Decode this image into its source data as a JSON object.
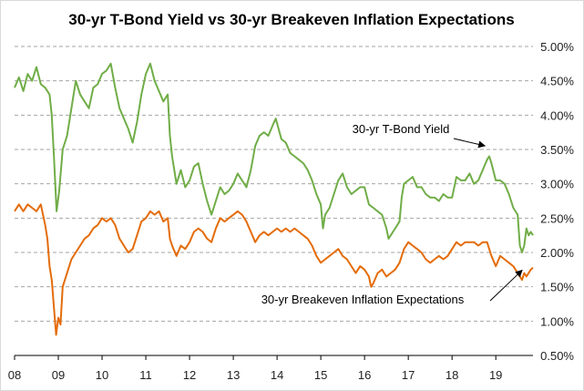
{
  "chart_data": {
    "type": "line",
    "title": "30-yr T-Bond Yield vs 30-yr Breakeven Inflation Expectations",
    "xlabel": "",
    "ylabel": "",
    "xlim": [
      2008,
      2019.85
    ],
    "ylim": [
      0.5,
      5.0
    ],
    "x_ticks": [
      {
        "x": 2008,
        "label": "08"
      },
      {
        "x": 2009,
        "label": "09"
      },
      {
        "x": 2010,
        "label": "10"
      },
      {
        "x": 2011,
        "label": "11"
      },
      {
        "x": 2012,
        "label": "12"
      },
      {
        "x": 2013,
        "label": "13"
      },
      {
        "x": 2014,
        "label": "14"
      },
      {
        "x": 2015,
        "label": "15"
      },
      {
        "x": 2016,
        "label": "16"
      },
      {
        "x": 2017,
        "label": "17"
      },
      {
        "x": 2018,
        "label": "18"
      },
      {
        "x": 2019,
        "label": "19"
      }
    ],
    "y_ticks": [
      {
        "y": 5.0,
        "label": "5.00%"
      },
      {
        "y": 4.5,
        "label": "4.50%"
      },
      {
        "y": 4.0,
        "label": "4.00%"
      },
      {
        "y": 3.5,
        "label": "3.50%"
      },
      {
        "y": 3.0,
        "label": "3.00%"
      },
      {
        "y": 2.5,
        "label": "2.50%"
      },
      {
        "y": 2.0,
        "label": "2.00%"
      },
      {
        "y": 1.5,
        "label": "1.50%"
      },
      {
        "y": 1.0,
        "label": "1.00%"
      },
      {
        "y": 0.5,
        "label": "0.50%"
      }
    ],
    "grid": true,
    "y_axis_side": "right",
    "legend": "none",
    "series": [
      {
        "name": "30-yr T-Bond Yield",
        "color": "#70ad47",
        "points": [
          [
            2008.0,
            4.4
          ],
          [
            2008.1,
            4.55
          ],
          [
            2008.2,
            4.35
          ],
          [
            2008.3,
            4.6
          ],
          [
            2008.4,
            4.5
          ],
          [
            2008.5,
            4.7
          ],
          [
            2008.6,
            4.45
          ],
          [
            2008.7,
            4.4
          ],
          [
            2008.8,
            4.3
          ],
          [
            2008.85,
            4.0
          ],
          [
            2008.9,
            3.4
          ],
          [
            2008.96,
            2.6
          ],
          [
            2009.02,
            2.9
          ],
          [
            2009.1,
            3.5
          ],
          [
            2009.2,
            3.7
          ],
          [
            2009.3,
            4.1
          ],
          [
            2009.4,
            4.5
          ],
          [
            2009.5,
            4.3
          ],
          [
            2009.6,
            4.2
          ],
          [
            2009.7,
            4.1
          ],
          [
            2009.8,
            4.4
          ],
          [
            2009.9,
            4.45
          ],
          [
            2010.0,
            4.6
          ],
          [
            2010.1,
            4.65
          ],
          [
            2010.2,
            4.75
          ],
          [
            2010.3,
            4.4
          ],
          [
            2010.4,
            4.1
          ],
          [
            2010.5,
            3.95
          ],
          [
            2010.6,
            3.8
          ],
          [
            2010.7,
            3.6
          ],
          [
            2010.8,
            3.9
          ],
          [
            2010.9,
            4.3
          ],
          [
            2011.0,
            4.6
          ],
          [
            2011.1,
            4.75
          ],
          [
            2011.2,
            4.5
          ],
          [
            2011.3,
            4.35
          ],
          [
            2011.4,
            4.2
          ],
          [
            2011.5,
            4.3
          ],
          [
            2011.55,
            3.7
          ],
          [
            2011.6,
            3.4
          ],
          [
            2011.7,
            3.0
          ],
          [
            2011.8,
            3.2
          ],
          [
            2011.9,
            2.95
          ],
          [
            2012.0,
            3.05
          ],
          [
            2012.1,
            3.25
          ],
          [
            2012.2,
            3.3
          ],
          [
            2012.3,
            3.0
          ],
          [
            2012.4,
            2.75
          ],
          [
            2012.5,
            2.55
          ],
          [
            2012.6,
            2.75
          ],
          [
            2012.7,
            2.95
          ],
          [
            2012.8,
            2.85
          ],
          [
            2012.9,
            2.9
          ],
          [
            2013.0,
            3.0
          ],
          [
            2013.1,
            3.15
          ],
          [
            2013.2,
            3.05
          ],
          [
            2013.3,
            2.95
          ],
          [
            2013.4,
            3.2
          ],
          [
            2013.5,
            3.55
          ],
          [
            2013.6,
            3.7
          ],
          [
            2013.7,
            3.75
          ],
          [
            2013.8,
            3.7
          ],
          [
            2013.9,
            3.85
          ],
          [
            2013.97,
            3.95
          ],
          [
            2014.1,
            3.65
          ],
          [
            2014.2,
            3.6
          ],
          [
            2014.3,
            3.45
          ],
          [
            2014.4,
            3.4
          ],
          [
            2014.5,
            3.35
          ],
          [
            2014.6,
            3.3
          ],
          [
            2014.7,
            3.2
          ],
          [
            2014.8,
            3.05
          ],
          [
            2014.9,
            2.85
          ],
          [
            2015.0,
            2.7
          ],
          [
            2015.05,
            2.35
          ],
          [
            2015.1,
            2.55
          ],
          [
            2015.2,
            2.65
          ],
          [
            2015.3,
            2.85
          ],
          [
            2015.4,
            3.05
          ],
          [
            2015.5,
            3.15
          ],
          [
            2015.6,
            2.95
          ],
          [
            2015.7,
            2.85
          ],
          [
            2015.8,
            2.9
          ],
          [
            2015.9,
            2.95
          ],
          [
            2016.0,
            2.95
          ],
          [
            2016.1,
            2.7
          ],
          [
            2016.2,
            2.65
          ],
          [
            2016.3,
            2.6
          ],
          [
            2016.4,
            2.55
          ],
          [
            2016.5,
            2.35
          ],
          [
            2016.55,
            2.2
          ],
          [
            2016.6,
            2.25
          ],
          [
            2016.7,
            2.35
          ],
          [
            2016.8,
            2.45
          ],
          [
            2016.85,
            2.8
          ],
          [
            2016.9,
            3.0
          ],
          [
            2017.0,
            3.05
          ],
          [
            2017.1,
            3.1
          ],
          [
            2017.2,
            2.95
          ],
          [
            2017.3,
            2.95
          ],
          [
            2017.4,
            2.85
          ],
          [
            2017.5,
            2.8
          ],
          [
            2017.6,
            2.8
          ],
          [
            2017.7,
            2.75
          ],
          [
            2017.8,
            2.85
          ],
          [
            2017.9,
            2.8
          ],
          [
            2018.0,
            2.8
          ],
          [
            2018.1,
            3.1
          ],
          [
            2018.2,
            3.05
          ],
          [
            2018.3,
            3.05
          ],
          [
            2018.4,
            3.15
          ],
          [
            2018.5,
            3.0
          ],
          [
            2018.6,
            3.05
          ],
          [
            2018.7,
            3.2
          ],
          [
            2018.8,
            3.35
          ],
          [
            2018.85,
            3.4
          ],
          [
            2018.9,
            3.3
          ],
          [
            2019.0,
            3.05
          ],
          [
            2019.1,
            3.05
          ],
          [
            2019.2,
            3.0
          ],
          [
            2019.3,
            2.85
          ],
          [
            2019.4,
            2.65
          ],
          [
            2019.5,
            2.55
          ],
          [
            2019.55,
            2.1
          ],
          [
            2019.6,
            2.0
          ],
          [
            2019.65,
            2.1
          ],
          [
            2019.7,
            2.35
          ],
          [
            2019.75,
            2.25
          ],
          [
            2019.8,
            2.3
          ],
          [
            2019.85,
            2.25
          ]
        ]
      },
      {
        "name": "30-yr Breakeven Inflation Expectations",
        "color": "#e46c0a",
        "points": [
          [
            2008.0,
            2.6
          ],
          [
            2008.1,
            2.7
          ],
          [
            2008.2,
            2.6
          ],
          [
            2008.3,
            2.7
          ],
          [
            2008.4,
            2.65
          ],
          [
            2008.5,
            2.6
          ],
          [
            2008.6,
            2.7
          ],
          [
            2008.7,
            2.4
          ],
          [
            2008.75,
            2.2
          ],
          [
            2008.8,
            1.8
          ],
          [
            2008.85,
            1.6
          ],
          [
            2008.9,
            1.2
          ],
          [
            2008.95,
            0.8
          ],
          [
            2009.0,
            1.05
          ],
          [
            2009.05,
            0.95
          ],
          [
            2009.1,
            1.5
          ],
          [
            2009.2,
            1.7
          ],
          [
            2009.3,
            1.9
          ],
          [
            2009.4,
            2.0
          ],
          [
            2009.5,
            2.1
          ],
          [
            2009.6,
            2.2
          ],
          [
            2009.7,
            2.25
          ],
          [
            2009.8,
            2.35
          ],
          [
            2009.9,
            2.4
          ],
          [
            2010.0,
            2.5
          ],
          [
            2010.1,
            2.45
          ],
          [
            2010.2,
            2.5
          ],
          [
            2010.3,
            2.4
          ],
          [
            2010.4,
            2.2
          ],
          [
            2010.5,
            2.1
          ],
          [
            2010.6,
            2.0
          ],
          [
            2010.7,
            2.05
          ],
          [
            2010.8,
            2.25
          ],
          [
            2010.9,
            2.45
          ],
          [
            2011.0,
            2.5
          ],
          [
            2011.1,
            2.6
          ],
          [
            2011.2,
            2.55
          ],
          [
            2011.3,
            2.6
          ],
          [
            2011.4,
            2.45
          ],
          [
            2011.5,
            2.5
          ],
          [
            2011.55,
            2.2
          ],
          [
            2011.6,
            2.1
          ],
          [
            2011.7,
            1.95
          ],
          [
            2011.8,
            2.1
          ],
          [
            2011.9,
            2.05
          ],
          [
            2012.0,
            2.15
          ],
          [
            2012.1,
            2.3
          ],
          [
            2012.2,
            2.35
          ],
          [
            2012.3,
            2.3
          ],
          [
            2012.4,
            2.2
          ],
          [
            2012.5,
            2.15
          ],
          [
            2012.6,
            2.35
          ],
          [
            2012.7,
            2.5
          ],
          [
            2012.8,
            2.45
          ],
          [
            2012.9,
            2.5
          ],
          [
            2013.0,
            2.55
          ],
          [
            2013.1,
            2.6
          ],
          [
            2013.2,
            2.55
          ],
          [
            2013.3,
            2.45
          ],
          [
            2013.4,
            2.3
          ],
          [
            2013.5,
            2.15
          ],
          [
            2013.6,
            2.25
          ],
          [
            2013.7,
            2.3
          ],
          [
            2013.8,
            2.25
          ],
          [
            2013.9,
            2.3
          ],
          [
            2014.0,
            2.35
          ],
          [
            2014.1,
            2.3
          ],
          [
            2014.2,
            2.35
          ],
          [
            2014.3,
            2.3
          ],
          [
            2014.4,
            2.35
          ],
          [
            2014.5,
            2.3
          ],
          [
            2014.6,
            2.25
          ],
          [
            2014.7,
            2.2
          ],
          [
            2014.8,
            2.1
          ],
          [
            2014.9,
            1.95
          ],
          [
            2015.0,
            1.85
          ],
          [
            2015.1,
            1.9
          ],
          [
            2015.2,
            1.95
          ],
          [
            2015.3,
            2.0
          ],
          [
            2015.4,
            2.05
          ],
          [
            2015.5,
            1.95
          ],
          [
            2015.6,
            1.9
          ],
          [
            2015.7,
            1.8
          ],
          [
            2015.8,
            1.7
          ],
          [
            2015.9,
            1.8
          ],
          [
            2016.0,
            1.75
          ],
          [
            2016.1,
            1.65
          ],
          [
            2016.15,
            1.5
          ],
          [
            2016.2,
            1.55
          ],
          [
            2016.3,
            1.7
          ],
          [
            2016.4,
            1.75
          ],
          [
            2016.5,
            1.65
          ],
          [
            2016.6,
            1.7
          ],
          [
            2016.7,
            1.75
          ],
          [
            2016.8,
            1.85
          ],
          [
            2016.9,
            2.05
          ],
          [
            2017.0,
            2.15
          ],
          [
            2017.1,
            2.1
          ],
          [
            2017.2,
            2.05
          ],
          [
            2017.3,
            2.0
          ],
          [
            2017.4,
            1.9
          ],
          [
            2017.5,
            1.85
          ],
          [
            2017.6,
            1.9
          ],
          [
            2017.7,
            1.95
          ],
          [
            2017.8,
            1.9
          ],
          [
            2017.9,
            1.95
          ],
          [
            2018.0,
            2.05
          ],
          [
            2018.1,
            2.15
          ],
          [
            2018.2,
            2.1
          ],
          [
            2018.3,
            2.15
          ],
          [
            2018.4,
            2.15
          ],
          [
            2018.5,
            2.15
          ],
          [
            2018.6,
            2.1
          ],
          [
            2018.7,
            2.15
          ],
          [
            2018.8,
            2.15
          ],
          [
            2018.9,
            1.95
          ],
          [
            2019.0,
            1.8
          ],
          [
            2019.1,
            1.95
          ],
          [
            2019.2,
            1.9
          ],
          [
            2019.3,
            1.85
          ],
          [
            2019.4,
            1.8
          ],
          [
            2019.5,
            1.7
          ],
          [
            2019.55,
            1.65
          ],
          [
            2019.6,
            1.6
          ],
          [
            2019.65,
            1.7
          ],
          [
            2019.7,
            1.65
          ],
          [
            2019.75,
            1.7
          ],
          [
            2019.8,
            1.75
          ],
          [
            2019.85,
            1.78
          ]
        ]
      }
    ],
    "annotations": [
      {
        "text": "30-yr T-Bond Yield",
        "series": "30-yr T-Bond Yield",
        "target": [
          2018.75,
          3.5
        ]
      },
      {
        "text": "30-yr Breakeven Inflation Expectations",
        "series": "30-yr Breakeven Inflation Expectations",
        "target": [
          2019.6,
          1.78
        ]
      }
    ]
  }
}
